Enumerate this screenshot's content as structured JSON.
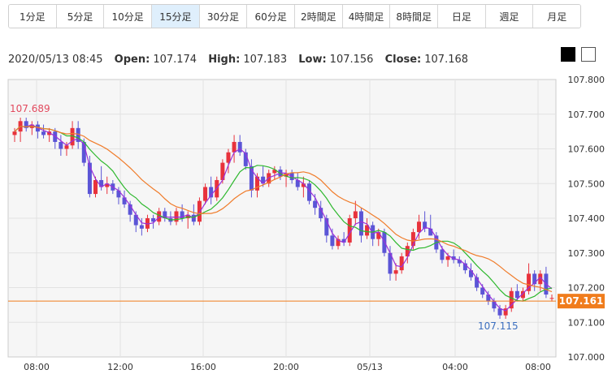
{
  "tabs": [
    {
      "label": "1分足",
      "active": false
    },
    {
      "label": "5分足",
      "active": false
    },
    {
      "label": "10分足",
      "active": false
    },
    {
      "label": "15分足",
      "active": true
    },
    {
      "label": "30分足",
      "active": false
    },
    {
      "label": "60分足",
      "active": false
    },
    {
      "label": "2時間足",
      "active": false
    },
    {
      "label": "4時間足",
      "active": false
    },
    {
      "label": "8時間足",
      "active": false
    },
    {
      "label": "日足",
      "active": false
    },
    {
      "label": "週足",
      "active": false
    },
    {
      "label": "月足",
      "active": false
    }
  ],
  "info": {
    "datetime": "2020/05/13 08:45",
    "open_label": "Open:",
    "open": "107.174",
    "high_label": "High:",
    "high": "107.183",
    "low_label": "Low:",
    "low": "107.156",
    "close_label": "Close:",
    "close": "107.168"
  },
  "theme_buttons": [
    "black",
    "white"
  ],
  "colors": {
    "up": "#e8323c",
    "down": "#5b55d6",
    "ma_short": "#9b30d9",
    "ma_mid": "#2eb82e",
    "ma_long": "#f07c2b",
    "current_price": "#f07c1c",
    "high_label": "#e24a5e",
    "low_label": "#3c6fbf"
  },
  "chart_data": {
    "type": "candlestick",
    "ylim": [
      107.0,
      107.8
    ],
    "yticks": [
      "107.000",
      "107.100",
      "107.200",
      "107.300",
      "107.400",
      "107.500",
      "107.600",
      "107.700",
      "107.800"
    ],
    "xticks": [
      "08:00",
      "12:00",
      "16:00",
      "20:00",
      "05/13",
      "04:00",
      "08:00"
    ],
    "high_annotation": "107.689",
    "low_annotation": "107.115",
    "current_price": "107.161",
    "candles": [
      [
        107.64,
        107.66,
        107.62,
        107.65
      ],
      [
        107.65,
        107.69,
        107.62,
        107.68
      ],
      [
        107.68,
        107.69,
        107.65,
        107.66
      ],
      [
        107.66,
        107.68,
        107.64,
        107.67
      ],
      [
        107.67,
        107.68,
        107.63,
        107.65
      ],
      [
        107.65,
        107.67,
        107.63,
        107.64
      ],
      [
        107.64,
        107.66,
        107.62,
        107.65
      ],
      [
        107.65,
        107.66,
        107.6,
        107.62
      ],
      [
        107.62,
        107.64,
        107.58,
        107.6
      ],
      [
        107.6,
        107.62,
        107.58,
        107.61
      ],
      [
        107.61,
        107.68,
        107.6,
        107.66
      ],
      [
        107.66,
        107.68,
        107.6,
        107.62
      ],
      [
        107.62,
        107.63,
        107.55,
        107.56
      ],
      [
        107.56,
        107.58,
        107.46,
        107.47
      ],
      [
        107.47,
        107.52,
        107.46,
        107.51
      ],
      [
        107.51,
        107.55,
        107.48,
        107.49
      ],
      [
        107.49,
        107.52,
        107.47,
        107.5
      ],
      [
        107.5,
        107.51,
        107.47,
        107.48
      ],
      [
        107.48,
        107.49,
        107.44,
        107.46
      ],
      [
        107.46,
        107.48,
        107.43,
        107.44
      ],
      [
        107.44,
        107.45,
        107.39,
        107.41
      ],
      [
        107.41,
        107.42,
        107.36,
        107.38
      ],
      [
        107.38,
        107.4,
        107.35,
        107.37
      ],
      [
        107.37,
        107.41,
        107.36,
        107.4
      ],
      [
        107.4,
        107.41,
        107.37,
        107.39
      ],
      [
        107.39,
        107.43,
        107.38,
        107.42
      ],
      [
        107.42,
        107.43,
        107.39,
        107.4
      ],
      [
        107.4,
        107.42,
        107.38,
        107.39
      ],
      [
        107.39,
        107.43,
        107.38,
        107.42
      ],
      [
        107.42,
        107.44,
        107.39,
        107.4
      ],
      [
        107.4,
        107.42,
        107.37,
        107.41
      ],
      [
        107.41,
        107.44,
        107.38,
        107.39
      ],
      [
        107.39,
        107.46,
        107.38,
        107.45
      ],
      [
        107.45,
        107.5,
        107.44,
        107.49
      ],
      [
        107.49,
        107.52,
        107.44,
        107.46
      ],
      [
        107.46,
        107.52,
        107.45,
        107.51
      ],
      [
        107.51,
        107.57,
        107.5,
        107.56
      ],
      [
        107.56,
        107.6,
        107.53,
        107.59
      ],
      [
        107.59,
        107.64,
        107.56,
        107.62
      ],
      [
        107.62,
        107.64,
        107.58,
        107.59
      ],
      [
        107.59,
        107.6,
        107.54,
        107.55
      ],
      [
        107.55,
        107.57,
        107.46,
        107.48
      ],
      [
        107.48,
        107.53,
        107.46,
        107.52
      ],
      [
        107.52,
        107.55,
        107.49,
        107.5
      ],
      [
        107.5,
        107.54,
        107.49,
        107.53
      ],
      [
        107.53,
        107.55,
        107.51,
        107.54
      ],
      [
        107.54,
        107.55,
        107.51,
        107.52
      ],
      [
        107.52,
        107.54,
        107.49,
        107.53
      ],
      [
        107.53,
        107.54,
        107.5,
        107.51
      ],
      [
        107.51,
        107.53,
        107.48,
        107.49
      ],
      [
        107.49,
        107.52,
        107.46,
        107.5
      ],
      [
        107.5,
        107.51,
        107.44,
        107.45
      ],
      [
        107.45,
        107.47,
        107.41,
        107.43
      ],
      [
        107.43,
        107.45,
        107.39,
        107.4
      ],
      [
        107.4,
        107.41,
        107.33,
        107.35
      ],
      [
        107.35,
        107.37,
        107.31,
        107.32
      ],
      [
        107.32,
        107.35,
        107.31,
        107.34
      ],
      [
        107.34,
        107.36,
        107.32,
        107.33
      ],
      [
        107.33,
        107.41,
        107.32,
        107.4
      ],
      [
        107.4,
        107.45,
        107.38,
        107.42
      ],
      [
        107.42,
        107.43,
        107.33,
        107.35
      ],
      [
        107.35,
        107.4,
        107.34,
        107.38
      ],
      [
        107.38,
        107.39,
        107.32,
        107.34
      ],
      [
        107.34,
        107.37,
        107.32,
        107.36
      ],
      [
        107.36,
        107.37,
        107.29,
        107.3
      ],
      [
        107.3,
        107.32,
        107.22,
        107.24
      ],
      [
        107.24,
        107.27,
        107.22,
        107.25
      ],
      [
        107.25,
        107.3,
        107.24,
        107.29
      ],
      [
        107.29,
        107.33,
        107.27,
        107.32
      ],
      [
        107.32,
        107.37,
        107.31,
        107.36
      ],
      [
        107.36,
        107.41,
        107.34,
        107.39
      ],
      [
        107.39,
        107.42,
        107.36,
        107.37
      ],
      [
        107.37,
        107.41,
        107.35,
        107.35
      ],
      [
        107.35,
        107.36,
        107.3,
        107.31
      ],
      [
        107.31,
        107.32,
        107.27,
        107.28
      ],
      [
        107.28,
        107.3,
        107.26,
        107.29
      ],
      [
        107.29,
        107.31,
        107.27,
        107.28
      ],
      [
        107.28,
        107.29,
        107.26,
        107.27
      ],
      [
        107.27,
        107.28,
        107.24,
        107.25
      ],
      [
        107.25,
        107.27,
        107.22,
        107.23
      ],
      [
        107.23,
        107.24,
        107.19,
        107.2
      ],
      [
        107.2,
        107.21,
        107.17,
        107.18
      ],
      [
        107.18,
        107.19,
        107.15,
        107.16
      ],
      [
        107.16,
        107.17,
        107.13,
        107.14
      ],
      [
        107.14,
        107.15,
        107.11,
        107.12
      ],
      [
        107.12,
        107.15,
        107.11,
        107.14
      ],
      [
        107.14,
        107.2,
        107.13,
        107.19
      ],
      [
        107.19,
        107.21,
        107.16,
        107.17
      ],
      [
        107.17,
        107.2,
        107.16,
        107.19
      ],
      [
        107.19,
        107.27,
        107.18,
        107.24
      ],
      [
        107.24,
        107.25,
        107.19,
        107.21
      ],
      [
        107.21,
        107.25,
        107.19,
        107.24
      ],
      [
        107.24,
        107.26,
        107.17,
        107.18
      ],
      [
        107.17,
        107.18,
        107.16,
        107.17
      ]
    ]
  }
}
